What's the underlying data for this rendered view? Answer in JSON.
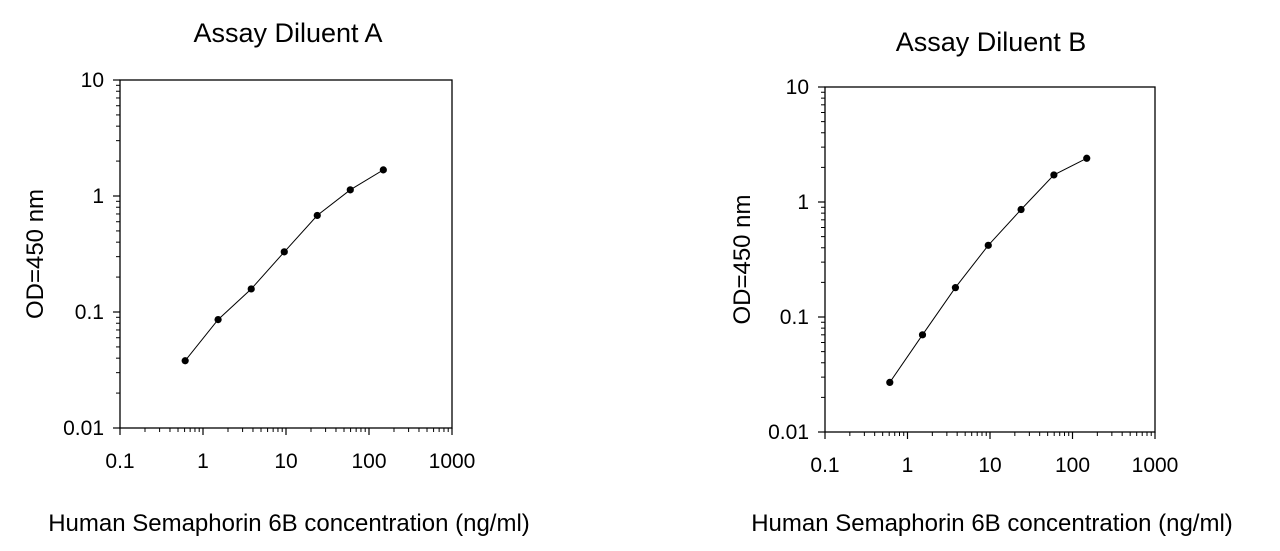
{
  "chart_data": [
    {
      "type": "line",
      "title": "Assay Diluent A",
      "xlabel": "Human Semaphorin 6B concentration (ng/ml)",
      "ylabel": "OD=450 nm",
      "xscale": "log",
      "yscale": "log",
      "xlim": [
        0.1,
        1000
      ],
      "ylim": [
        0.01,
        10
      ],
      "xticks": [
        "0.1",
        "1",
        "10",
        "100",
        "1000"
      ],
      "yticks": [
        "0.01",
        "0.1",
        "1",
        "10"
      ],
      "grid": false,
      "series": [
        {
          "x": [
            0.61,
            1.52,
            3.81,
            9.53,
            23.8,
            59.5,
            148.8
          ],
          "y": [
            0.038,
            0.086,
            0.158,
            0.33,
            0.68,
            1.13,
            1.68
          ]
        }
      ]
    },
    {
      "type": "line",
      "title": "Assay Diluent B",
      "xlabel": "Human Semaphorin 6B concentration (ng/ml)",
      "ylabel": "OD=450 nm",
      "xscale": "log",
      "yscale": "log",
      "xlim": [
        0.1,
        1000
      ],
      "ylim": [
        0.01,
        10
      ],
      "xticks": [
        "0.1",
        "1",
        "10",
        "100",
        "1000"
      ],
      "yticks": [
        "0.01",
        "0.1",
        "1",
        "10"
      ],
      "grid": false,
      "series": [
        {
          "x": [
            0.61,
            1.52,
            3.81,
            9.53,
            23.8,
            59.5,
            148.8
          ],
          "y": [
            0.027,
            0.07,
            0.18,
            0.42,
            0.86,
            1.72,
            2.4
          ]
        }
      ]
    }
  ]
}
